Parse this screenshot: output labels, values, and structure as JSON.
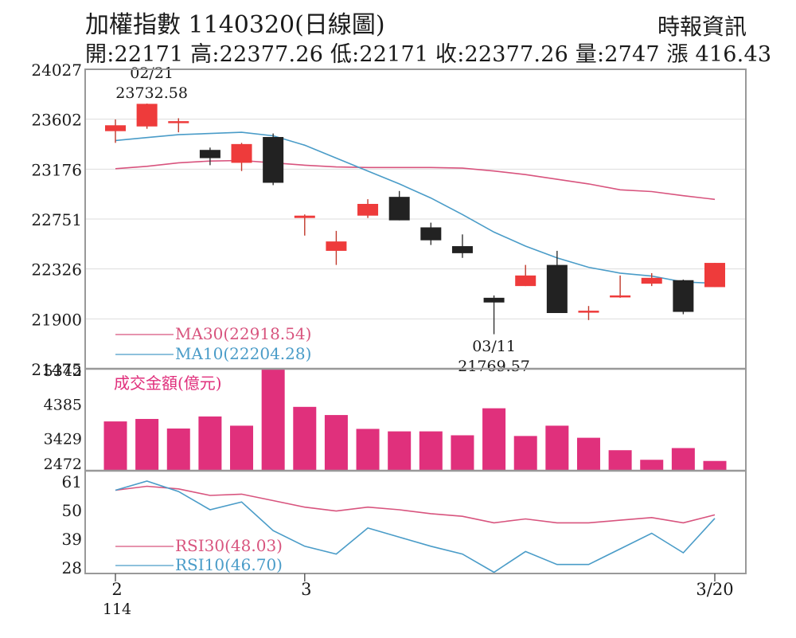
{
  "header": {
    "title": "加權指數 1140320(日線圖)",
    "source": "時報資訊",
    "quote": "開:22171 高:22377.26 低:22171 收:22377.26 量:2747 漲 416.43"
  },
  "colors": {
    "up": "#ee3b3b",
    "down": "#222222",
    "ma30": "#d8547e",
    "ma10": "#4a9cc8",
    "volume": "#e0307c",
    "rsi30": "#d8547e",
    "rsi10": "#4a9cc8",
    "frame": "#999999",
    "grid": "#dddddd"
  },
  "chart_data": [
    {
      "type": "candlestick",
      "ylim": [
        21475,
        24027
      ],
      "yticks": [
        "24027",
        "23602",
        "23176",
        "22751",
        "22326",
        "21900",
        "21475"
      ],
      "candles": [
        {
          "o": 23500,
          "h": 23600,
          "l": 23400,
          "c": 23550
        },
        {
          "o": 23540,
          "h": 23735,
          "l": 23520,
          "c": 23732.58
        },
        {
          "o": 23580,
          "h": 23610,
          "l": 23490,
          "c": 23585
        },
        {
          "o": 23340,
          "h": 23360,
          "l": 23210,
          "c": 23270
        },
        {
          "o": 23230,
          "h": 23400,
          "l": 23160,
          "c": 23390
        },
        {
          "o": 23450,
          "h": 23480,
          "l": 23040,
          "c": 23060
        },
        {
          "o": 22760,
          "h": 22790,
          "l": 22610,
          "c": 22780
        },
        {
          "o": 22480,
          "h": 22650,
          "l": 22360,
          "c": 22560
        },
        {
          "o": 22780,
          "h": 22920,
          "l": 22760,
          "c": 22880
        },
        {
          "o": 22940,
          "h": 22990,
          "l": 22740,
          "c": 22740
        },
        {
          "o": 22680,
          "h": 22720,
          "l": 22530,
          "c": 22570
        },
        {
          "o": 22520,
          "h": 22620,
          "l": 22420,
          "c": 22460
        },
        {
          "o": 22080,
          "h": 22100,
          "l": 21769.57,
          "c": 22040
        },
        {
          "o": 22180,
          "h": 22360,
          "l": 22180,
          "c": 22270
        },
        {
          "o": 22360,
          "h": 22480,
          "l": 21950,
          "c": 21950
        },
        {
          "o": 21960,
          "h": 22010,
          "l": 21890,
          "c": 21970
        },
        {
          "o": 22090,
          "h": 22270,
          "l": 22080,
          "c": 22100
        },
        {
          "o": 22200,
          "h": 22290,
          "l": 22180,
          "c": 22250
        },
        {
          "o": 22230,
          "h": 22235,
          "l": 21940,
          "c": 21960
        },
        {
          "o": 22171,
          "h": 22377.26,
          "l": 22171,
          "c": 22377.26
        }
      ],
      "ma30": [
        23180,
        23200,
        23230,
        23245,
        23250,
        23230,
        23210,
        23195,
        23190,
        23190,
        23190,
        23185,
        23160,
        23130,
        23090,
        23050,
        23000,
        22985,
        22950,
        22918.54
      ],
      "ma10": [
        23420,
        23445,
        23470,
        23480,
        23490,
        23460,
        23380,
        23270,
        23160,
        23050,
        22930,
        22790,
        22640,
        22520,
        22420,
        22340,
        22290,
        22265,
        22215,
        22204.28
      ],
      "legend": [
        {
          "key": "ma30",
          "label": "MA30(22918.54)"
        },
        {
          "key": "ma10",
          "label": "MA10(22204.28)"
        }
      ],
      "annotations": [
        {
          "date": "02/21",
          "value": "23732.58"
        },
        {
          "date": "03/11",
          "value": "21769.57"
        }
      ]
    },
    {
      "type": "bar",
      "title": "成交金額(億元)",
      "ylim": [
        2472,
        5342
      ],
      "yticks": [
        "5342",
        "4385",
        "3429",
        "2472"
      ],
      "values": [
        3860,
        3930,
        3660,
        4000,
        3740,
        5342,
        4270,
        4040,
        3650,
        3580,
        3580,
        3470,
        4230,
        3450,
        3740,
        3400,
        3050,
        2780,
        3110,
        2747
      ]
    },
    {
      "type": "line",
      "ylim": [
        28,
        61
      ],
      "yticks": [
        "61",
        "50",
        "39",
        "28"
      ],
      "series": [
        {
          "name": "RSI30(48.03)",
          "key": "rsi30",
          "values": [
            57.5,
            59,
            58,
            55.5,
            56,
            53.5,
            51,
            49.5,
            51,
            50,
            48.5,
            47.5,
            45,
            46.5,
            45,
            45,
            46,
            47,
            45,
            48.03
          ]
        },
        {
          "name": "RSI10(46.70)",
          "key": "rsi10",
          "values": [
            57.5,
            61,
            57,
            50,
            53,
            42,
            36,
            33,
            43,
            39.5,
            36,
            33,
            26,
            34,
            29,
            29,
            35,
            41,
            33.5,
            46.7
          ]
        }
      ]
    }
  ],
  "xaxis": {
    "ticks": [
      {
        "index": 0,
        "label": "2"
      },
      {
        "index": 6,
        "label": "3"
      },
      {
        "index": 19,
        "label": "3/20"
      }
    ],
    "year_label": "114"
  }
}
